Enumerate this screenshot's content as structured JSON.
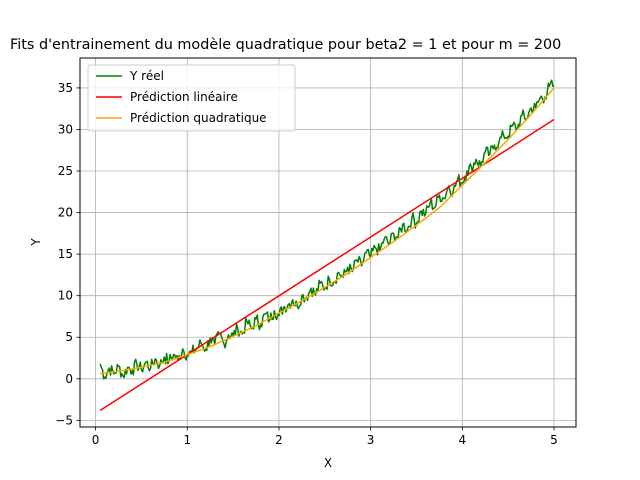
{
  "chart_data": {
    "type": "line",
    "title": "Fits d'entrainement du modèle quadratique pour beta2 = 1 et pour m = 200",
    "xlabel": "X",
    "ylabel": "Y",
    "xlim": [
      -0.17,
      5.24
    ],
    "ylim": [
      -5.8,
      38.6
    ],
    "xticks": [
      0,
      1,
      2,
      3,
      4,
      5
    ],
    "yticks": [
      -5,
      0,
      5,
      10,
      15,
      20,
      25,
      30,
      35
    ],
    "grid": true,
    "legend_position": "top-left",
    "series": [
      {
        "name": "Y réel",
        "color": "#008000",
        "noisy": true,
        "x": [
          0.05,
          0.1,
          0.15,
          0.2,
          0.25,
          0.3,
          0.35,
          0.4,
          0.45,
          0.5,
          0.55,
          0.6,
          0.65,
          0.7,
          0.75,
          0.8,
          0.85,
          0.9,
          0.95,
          1.0,
          1.05,
          1.1,
          1.15,
          1.2,
          1.25,
          1.3,
          1.35,
          1.4,
          1.45,
          1.5,
          1.55,
          1.6,
          1.65,
          1.7,
          1.75,
          1.8,
          1.85,
          1.9,
          1.95,
          2.0,
          2.05,
          2.1,
          2.15,
          2.2,
          2.25,
          2.3,
          2.35,
          2.4,
          2.45,
          2.5,
          2.55,
          2.6,
          2.65,
          2.7,
          2.75,
          2.8,
          2.85,
          2.9,
          2.95,
          3.0,
          3.05,
          3.1,
          3.15,
          3.2,
          3.25,
          3.3,
          3.35,
          3.4,
          3.45,
          3.5,
          3.55,
          3.6,
          3.65,
          3.7,
          3.75,
          3.8,
          3.85,
          3.9,
          3.95,
          4.0,
          4.05,
          4.1,
          4.15,
          4.2,
          4.25,
          4.3,
          4.35,
          4.4,
          4.45,
          4.5,
          4.55,
          4.6,
          4.65,
          4.7,
          4.75,
          4.8,
          4.85,
          4.9,
          4.95,
          5.0
        ],
        "y": [
          1.8,
          0.2,
          1.3,
          0.6,
          1.5,
          0.3,
          1.4,
          1.0,
          1.8,
          1.1,
          2.0,
          1.3,
          2.4,
          1.6,
          2.6,
          2.1,
          2.9,
          2.2,
          3.6,
          2.8,
          3.2,
          3.6,
          4.3,
          3.5,
          4.9,
          4.1,
          5.4,
          4.2,
          5.3,
          5.2,
          6.1,
          5.4,
          6.9,
          6.0,
          7.2,
          6.5,
          7.8,
          7.1,
          8.2,
          7.6,
          8.6,
          8.9,
          9.5,
          8.7,
          10.0,
          9.8,
          10.9,
          10.1,
          11.5,
          10.9,
          12.0,
          11.7,
          12.8,
          12.2,
          13.4,
          12.9,
          14.3,
          13.6,
          15.2,
          14.6,
          15.8,
          15.4,
          16.9,
          16.2,
          17.5,
          17.0,
          18.6,
          17.9,
          19.4,
          18.7,
          20.2,
          19.8,
          21.2,
          20.6,
          22.1,
          21.7,
          23.2,
          22.5,
          24.0,
          23.6,
          25.0,
          25.4,
          26.4,
          25.7,
          27.3,
          27.0,
          28.1,
          28.5,
          29.3,
          29.2,
          30.5,
          30.1,
          31.7,
          31.3,
          32.6,
          32.6,
          33.8,
          33.9,
          35.2,
          35.3
        ]
      },
      {
        "name": "Prédiction linéaire",
        "color": "#ff0000",
        "x": [
          0.05,
          5.0
        ],
        "y": [
          -3.8,
          31.2
        ]
      },
      {
        "name": "Prédiction quadratique",
        "color": "#ffa500",
        "x": [
          0.05,
          0.25,
          0.5,
          0.75,
          1.0,
          1.25,
          1.5,
          1.75,
          2.0,
          2.25,
          2.5,
          2.75,
          3.0,
          3.25,
          3.5,
          3.75,
          4.0,
          4.25,
          4.5,
          4.75,
          5.0
        ],
        "y": [
          0.6,
          0.9,
          1.4,
          2.0,
          2.9,
          3.9,
          5.1,
          6.4,
          7.9,
          9.4,
          11.0,
          12.7,
          14.6,
          16.5,
          18.5,
          20.6,
          23.3,
          26.0,
          28.8,
          31.8,
          35.0
        ]
      }
    ]
  }
}
